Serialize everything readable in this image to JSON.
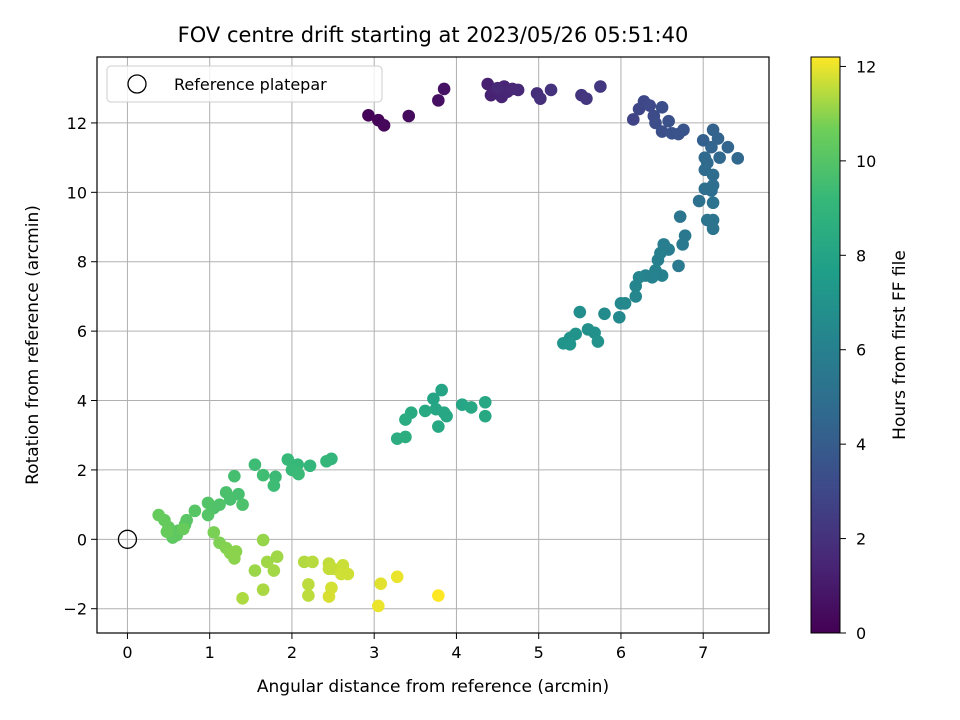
{
  "chart_data": {
    "type": "scatter",
    "title": "FOV centre drift starting at 2023/05/26 05:51:40",
    "xlabel": "Angular distance from reference (arcmin)",
    "ylabel": "Rotation from reference (arcmin)",
    "xlim": [
      -0.37,
      7.8
    ],
    "ylim": [
      -2.7,
      13.9
    ],
    "xticks": [
      0,
      1,
      2,
      3,
      4,
      5,
      6,
      7
    ],
    "yticks": [
      -2,
      0,
      2,
      4,
      6,
      8,
      10,
      12
    ],
    "grid": true,
    "legend": {
      "position": "top-left",
      "entries": [
        "Reference platepar"
      ]
    },
    "reference_point": {
      "x": 0,
      "y": 0
    },
    "colorbar": {
      "label": "Hours from first FF file",
      "range": [
        0,
        12.2
      ],
      "ticks": [
        0,
        2,
        4,
        6,
        8,
        10,
        12
      ],
      "colormap": "viridis"
    },
    "series": [
      {
        "values": [
          {
            "x": 2.93,
            "y": 12.22,
            "t": 0.1
          },
          {
            "x": 3.05,
            "y": 12.08,
            "t": 0.2
          },
          {
            "x": 3.12,
            "y": 11.93,
            "t": 0.3
          },
          {
            "x": 3.42,
            "y": 12.2,
            "t": 0.4
          },
          {
            "x": 3.78,
            "y": 12.65,
            "t": 0.6
          },
          {
            "x": 3.85,
            "y": 12.98,
            "t": 0.7
          },
          {
            "x": 4.38,
            "y": 13.12,
            "t": 1.2
          },
          {
            "x": 4.42,
            "y": 12.8,
            "t": 1.3
          },
          {
            "x": 4.48,
            "y": 12.95,
            "t": 1.35
          },
          {
            "x": 4.55,
            "y": 12.75,
            "t": 1.4
          },
          {
            "x": 4.58,
            "y": 13.05,
            "t": 1.45
          },
          {
            "x": 4.62,
            "y": 12.9,
            "t": 1.5
          },
          {
            "x": 4.68,
            "y": 12.98,
            "t": 1.55
          },
          {
            "x": 4.75,
            "y": 12.95,
            "t": 1.6
          },
          {
            "x": 4.5,
            "y": 13.0,
            "t": 1.6
          },
          {
            "x": 4.98,
            "y": 12.85,
            "t": 1.8
          },
          {
            "x": 5.02,
            "y": 12.7,
            "t": 1.9
          },
          {
            "x": 5.15,
            "y": 12.95,
            "t": 2.0
          },
          {
            "x": 5.52,
            "y": 12.8,
            "t": 2.1
          },
          {
            "x": 5.58,
            "y": 12.7,
            "t": 2.2
          },
          {
            "x": 5.75,
            "y": 13.05,
            "t": 2.3
          },
          {
            "x": 6.15,
            "y": 12.1,
            "t": 2.8
          },
          {
            "x": 6.22,
            "y": 12.4,
            "t": 2.9
          },
          {
            "x": 6.28,
            "y": 12.62,
            "t": 3.0
          },
          {
            "x": 6.35,
            "y": 12.5,
            "t": 3.1
          },
          {
            "x": 6.4,
            "y": 12.2,
            "t": 3.2
          },
          {
            "x": 6.42,
            "y": 12.0,
            "t": 3.25
          },
          {
            "x": 6.5,
            "y": 12.45,
            "t": 3.3
          },
          {
            "x": 6.5,
            "y": 11.75,
            "t": 3.4
          },
          {
            "x": 6.58,
            "y": 12.05,
            "t": 3.45
          },
          {
            "x": 6.62,
            "y": 11.7,
            "t": 3.5
          },
          {
            "x": 6.7,
            "y": 11.68,
            "t": 3.55
          },
          {
            "x": 6.76,
            "y": 11.8,
            "t": 3.6
          },
          {
            "x": 7.12,
            "y": 11.8,
            "t": 4.3
          },
          {
            "x": 7.18,
            "y": 11.55,
            "t": 4.4
          },
          {
            "x": 7.1,
            "y": 11.3,
            "t": 4.5
          },
          {
            "x": 7.2,
            "y": 11.0,
            "t": 4.6
          },
          {
            "x": 7.3,
            "y": 11.3,
            "t": 4.5
          },
          {
            "x": 7.42,
            "y": 10.98,
            "t": 4.6
          },
          {
            "x": 7.0,
            "y": 11.5,
            "t": 4.2
          },
          {
            "x": 7.02,
            "y": 11.0,
            "t": 4.7
          },
          {
            "x": 7.05,
            "y": 10.85,
            "t": 4.75
          },
          {
            "x": 7.02,
            "y": 10.65,
            "t": 4.8
          },
          {
            "x": 7.12,
            "y": 10.5,
            "t": 4.85
          },
          {
            "x": 7.12,
            "y": 10.2,
            "t": 4.9
          },
          {
            "x": 7.1,
            "y": 10.05,
            "t": 4.95
          },
          {
            "x": 7.02,
            "y": 10.1,
            "t": 5.0
          },
          {
            "x": 6.95,
            "y": 9.75,
            "t": 5.1
          },
          {
            "x": 7.12,
            "y": 9.7,
            "t": 5.15
          },
          {
            "x": 7.05,
            "y": 9.2,
            "t": 5.2
          },
          {
            "x": 7.12,
            "y": 9.2,
            "t": 5.25
          },
          {
            "x": 7.12,
            "y": 8.95,
            "t": 5.3
          },
          {
            "x": 6.72,
            "y": 9.3,
            "t": 5.4
          },
          {
            "x": 6.78,
            "y": 8.75,
            "t": 5.5
          },
          {
            "x": 6.75,
            "y": 8.5,
            "t": 5.55
          },
          {
            "x": 6.7,
            "y": 7.88,
            "t": 5.6
          },
          {
            "x": 6.52,
            "y": 8.5,
            "t": 5.8
          },
          {
            "x": 6.58,
            "y": 8.35,
            "t": 5.85
          },
          {
            "x": 6.48,
            "y": 8.25,
            "t": 5.9
          },
          {
            "x": 6.45,
            "y": 8.05,
            "t": 5.95
          },
          {
            "x": 6.5,
            "y": 7.6,
            "t": 6.0
          },
          {
            "x": 6.42,
            "y": 7.75,
            "t": 6.05
          },
          {
            "x": 6.38,
            "y": 7.55,
            "t": 6.1
          },
          {
            "x": 6.3,
            "y": 7.6,
            "t": 6.15
          },
          {
            "x": 6.22,
            "y": 7.55,
            "t": 6.2
          },
          {
            "x": 6.18,
            "y": 7.3,
            "t": 6.25
          },
          {
            "x": 6.18,
            "y": 7.0,
            "t": 6.3
          },
          {
            "x": 6.05,
            "y": 6.8,
            "t": 6.4
          },
          {
            "x": 6.0,
            "y": 6.8,
            "t": 6.45
          },
          {
            "x": 5.98,
            "y": 6.4,
            "t": 6.5
          },
          {
            "x": 5.8,
            "y": 6.5,
            "t": 6.6
          },
          {
            "x": 5.5,
            "y": 6.55,
            "t": 6.8
          },
          {
            "x": 5.6,
            "y": 6.05,
            "t": 6.85
          },
          {
            "x": 5.68,
            "y": 5.95,
            "t": 6.9
          },
          {
            "x": 5.72,
            "y": 5.7,
            "t": 6.95
          },
          {
            "x": 5.45,
            "y": 5.92,
            "t": 7.0
          },
          {
            "x": 5.38,
            "y": 5.8,
            "t": 7.05
          },
          {
            "x": 5.3,
            "y": 5.65,
            "t": 7.1
          },
          {
            "x": 5.38,
            "y": 5.62,
            "t": 7.1
          },
          {
            "x": 3.72,
            "y": 4.05,
            "t": 8.0
          },
          {
            "x": 3.82,
            "y": 4.3,
            "t": 8.05
          },
          {
            "x": 3.75,
            "y": 3.75,
            "t": 8.1
          },
          {
            "x": 3.85,
            "y": 3.65,
            "t": 8.15
          },
          {
            "x": 3.88,
            "y": 3.55,
            "t": 8.2
          },
          {
            "x": 3.78,
            "y": 3.25,
            "t": 8.25
          },
          {
            "x": 3.62,
            "y": 3.7,
            "t": 8.3
          },
          {
            "x": 3.45,
            "y": 3.65,
            "t": 8.35
          },
          {
            "x": 3.38,
            "y": 3.45,
            "t": 8.4
          },
          {
            "x": 4.07,
            "y": 3.88,
            "t": 8.1
          },
          {
            "x": 4.18,
            "y": 3.8,
            "t": 8.15
          },
          {
            "x": 4.35,
            "y": 3.95,
            "t": 8.2
          },
          {
            "x": 4.35,
            "y": 3.55,
            "t": 8.25
          },
          {
            "x": 3.28,
            "y": 2.9,
            "t": 8.5
          },
          {
            "x": 3.38,
            "y": 2.95,
            "t": 8.55
          },
          {
            "x": 2.48,
            "y": 2.32,
            "t": 9.0
          },
          {
            "x": 2.42,
            "y": 2.25,
            "t": 9.05
          },
          {
            "x": 2.22,
            "y": 2.12,
            "t": 9.1
          },
          {
            "x": 2.07,
            "y": 2.15,
            "t": 9.15
          },
          {
            "x": 1.95,
            "y": 2.3,
            "t": 9.2
          },
          {
            "x": 2.0,
            "y": 2.0,
            "t": 9.25
          },
          {
            "x": 2.08,
            "y": 1.88,
            "t": 9.3
          },
          {
            "x": 1.8,
            "y": 1.8,
            "t": 9.35
          },
          {
            "x": 1.78,
            "y": 1.55,
            "t": 9.4
          },
          {
            "x": 1.65,
            "y": 1.85,
            "t": 9.45
          },
          {
            "x": 1.55,
            "y": 2.15,
            "t": 9.4
          },
          {
            "x": 1.3,
            "y": 1.82,
            "t": 9.6
          },
          {
            "x": 1.35,
            "y": 1.3,
            "t": 9.65
          },
          {
            "x": 1.25,
            "y": 1.15,
            "t": 9.7
          },
          {
            "x": 1.2,
            "y": 1.35,
            "t": 9.75
          },
          {
            "x": 1.4,
            "y": 1.0,
            "t": 9.8
          },
          {
            "x": 1.12,
            "y": 1.0,
            "t": 9.85
          },
          {
            "x": 1.05,
            "y": 0.9,
            "t": 9.9
          },
          {
            "x": 0.98,
            "y": 1.05,
            "t": 9.95
          },
          {
            "x": 0.98,
            "y": 0.7,
            "t": 10.0
          },
          {
            "x": 0.82,
            "y": 0.82,
            "t": 10.05
          },
          {
            "x": 0.72,
            "y": 0.55,
            "t": 10.1
          },
          {
            "x": 0.7,
            "y": 0.42,
            "t": 10.15
          },
          {
            "x": 0.62,
            "y": 0.25,
            "t": 10.2
          },
          {
            "x": 0.55,
            "y": 0.05,
            "t": 10.25
          },
          {
            "x": 0.6,
            "y": 0.12,
            "t": 10.3
          },
          {
            "x": 0.5,
            "y": 0.35,
            "t": 10.35
          },
          {
            "x": 0.45,
            "y": 0.55,
            "t": 10.4
          },
          {
            "x": 0.38,
            "y": 0.7,
            "t": 10.45
          },
          {
            "x": 0.48,
            "y": 0.22,
            "t": 10.5
          },
          {
            "x": 0.68,
            "y": 0.3,
            "t": 10.5
          },
          {
            "x": 1.05,
            "y": 0.2,
            "t": 10.8
          },
          {
            "x": 1.12,
            "y": -0.1,
            "t": 10.85
          },
          {
            "x": 1.2,
            "y": -0.25,
            "t": 10.9
          },
          {
            "x": 1.25,
            "y": -0.4,
            "t": 10.95
          },
          {
            "x": 1.3,
            "y": -0.55,
            "t": 11.0
          },
          {
            "x": 1.32,
            "y": -0.35,
            "t": 11.0
          },
          {
            "x": 1.65,
            "y": -0.02,
            "t": 11.1
          },
          {
            "x": 1.55,
            "y": -0.9,
            "t": 11.15
          },
          {
            "x": 1.7,
            "y": -0.65,
            "t": 11.2
          },
          {
            "x": 1.82,
            "y": -0.5,
            "t": 11.2
          },
          {
            "x": 1.78,
            "y": -0.9,
            "t": 11.25
          },
          {
            "x": 1.65,
            "y": -1.45,
            "t": 11.3
          },
          {
            "x": 1.4,
            "y": -1.7,
            "t": 11.35
          },
          {
            "x": 2.15,
            "y": -0.65,
            "t": 11.4
          },
          {
            "x": 2.25,
            "y": -0.65,
            "t": 11.45
          },
          {
            "x": 2.2,
            "y": -1.3,
            "t": 11.5
          },
          {
            "x": 2.2,
            "y": -1.62,
            "t": 11.5
          },
          {
            "x": 2.45,
            "y": -0.7,
            "t": 11.55
          },
          {
            "x": 2.5,
            "y": -0.85,
            "t": 11.6
          },
          {
            "x": 2.45,
            "y": -0.85,
            "t": 11.6
          },
          {
            "x": 2.62,
            "y": -0.75,
            "t": 11.65
          },
          {
            "x": 2.6,
            "y": -1.0,
            "t": 11.7
          },
          {
            "x": 2.68,
            "y": -1.0,
            "t": 11.7
          },
          {
            "x": 2.48,
            "y": -1.4,
            "t": 11.75
          },
          {
            "x": 2.45,
            "y": -1.65,
            "t": 11.8
          },
          {
            "x": 3.08,
            "y": -1.28,
            "t": 11.9
          },
          {
            "x": 3.05,
            "y": -1.92,
            "t": 12.0
          },
          {
            "x": 3.28,
            "y": -1.08,
            "t": 12.0
          },
          {
            "x": 3.78,
            "y": -1.62,
            "t": 12.2
          }
        ]
      }
    ]
  }
}
